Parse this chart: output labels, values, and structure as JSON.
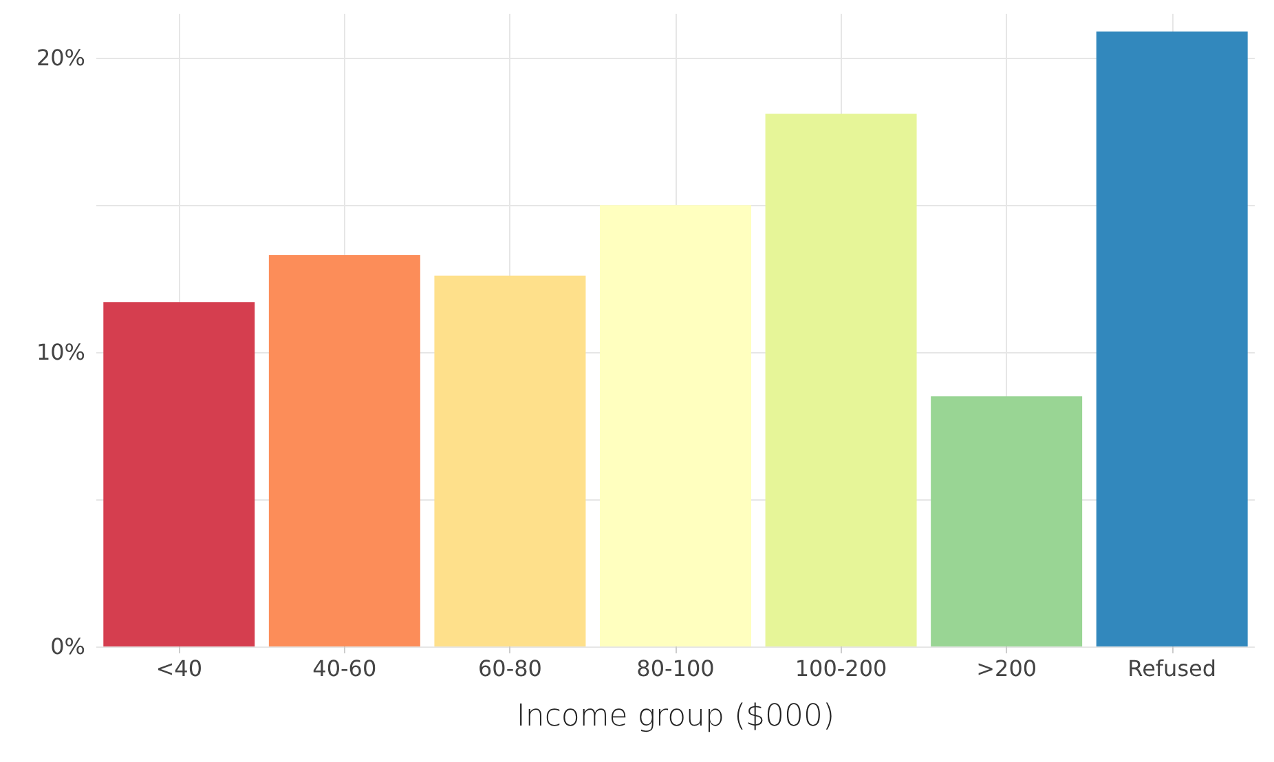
{
  "chart_data": {
    "type": "bar",
    "xlabel": "Income group ($000)",
    "categories": [
      "<40",
      "40-60",
      "60-80",
      "80-100",
      "100-200",
      ">200",
      "Refused"
    ],
    "values": [
      11.7,
      13.3,
      12.6,
      15.0,
      18.1,
      8.5,
      20.9
    ],
    "colors": [
      "#d53e4f",
      "#fc8d59",
      "#fee08b",
      "#ffffbf",
      "#e6f598",
      "#99d594",
      "#3288bd"
    ],
    "ylim": [
      0,
      21.5
    ],
    "yticks": [
      {
        "value": 0,
        "label": "0%"
      },
      {
        "value": 5,
        "label": null
      },
      {
        "value": 10,
        "label": "10%"
      },
      {
        "value": 15,
        "label": null
      },
      {
        "value": 20,
        "label": "20%"
      }
    ],
    "grid": true
  }
}
